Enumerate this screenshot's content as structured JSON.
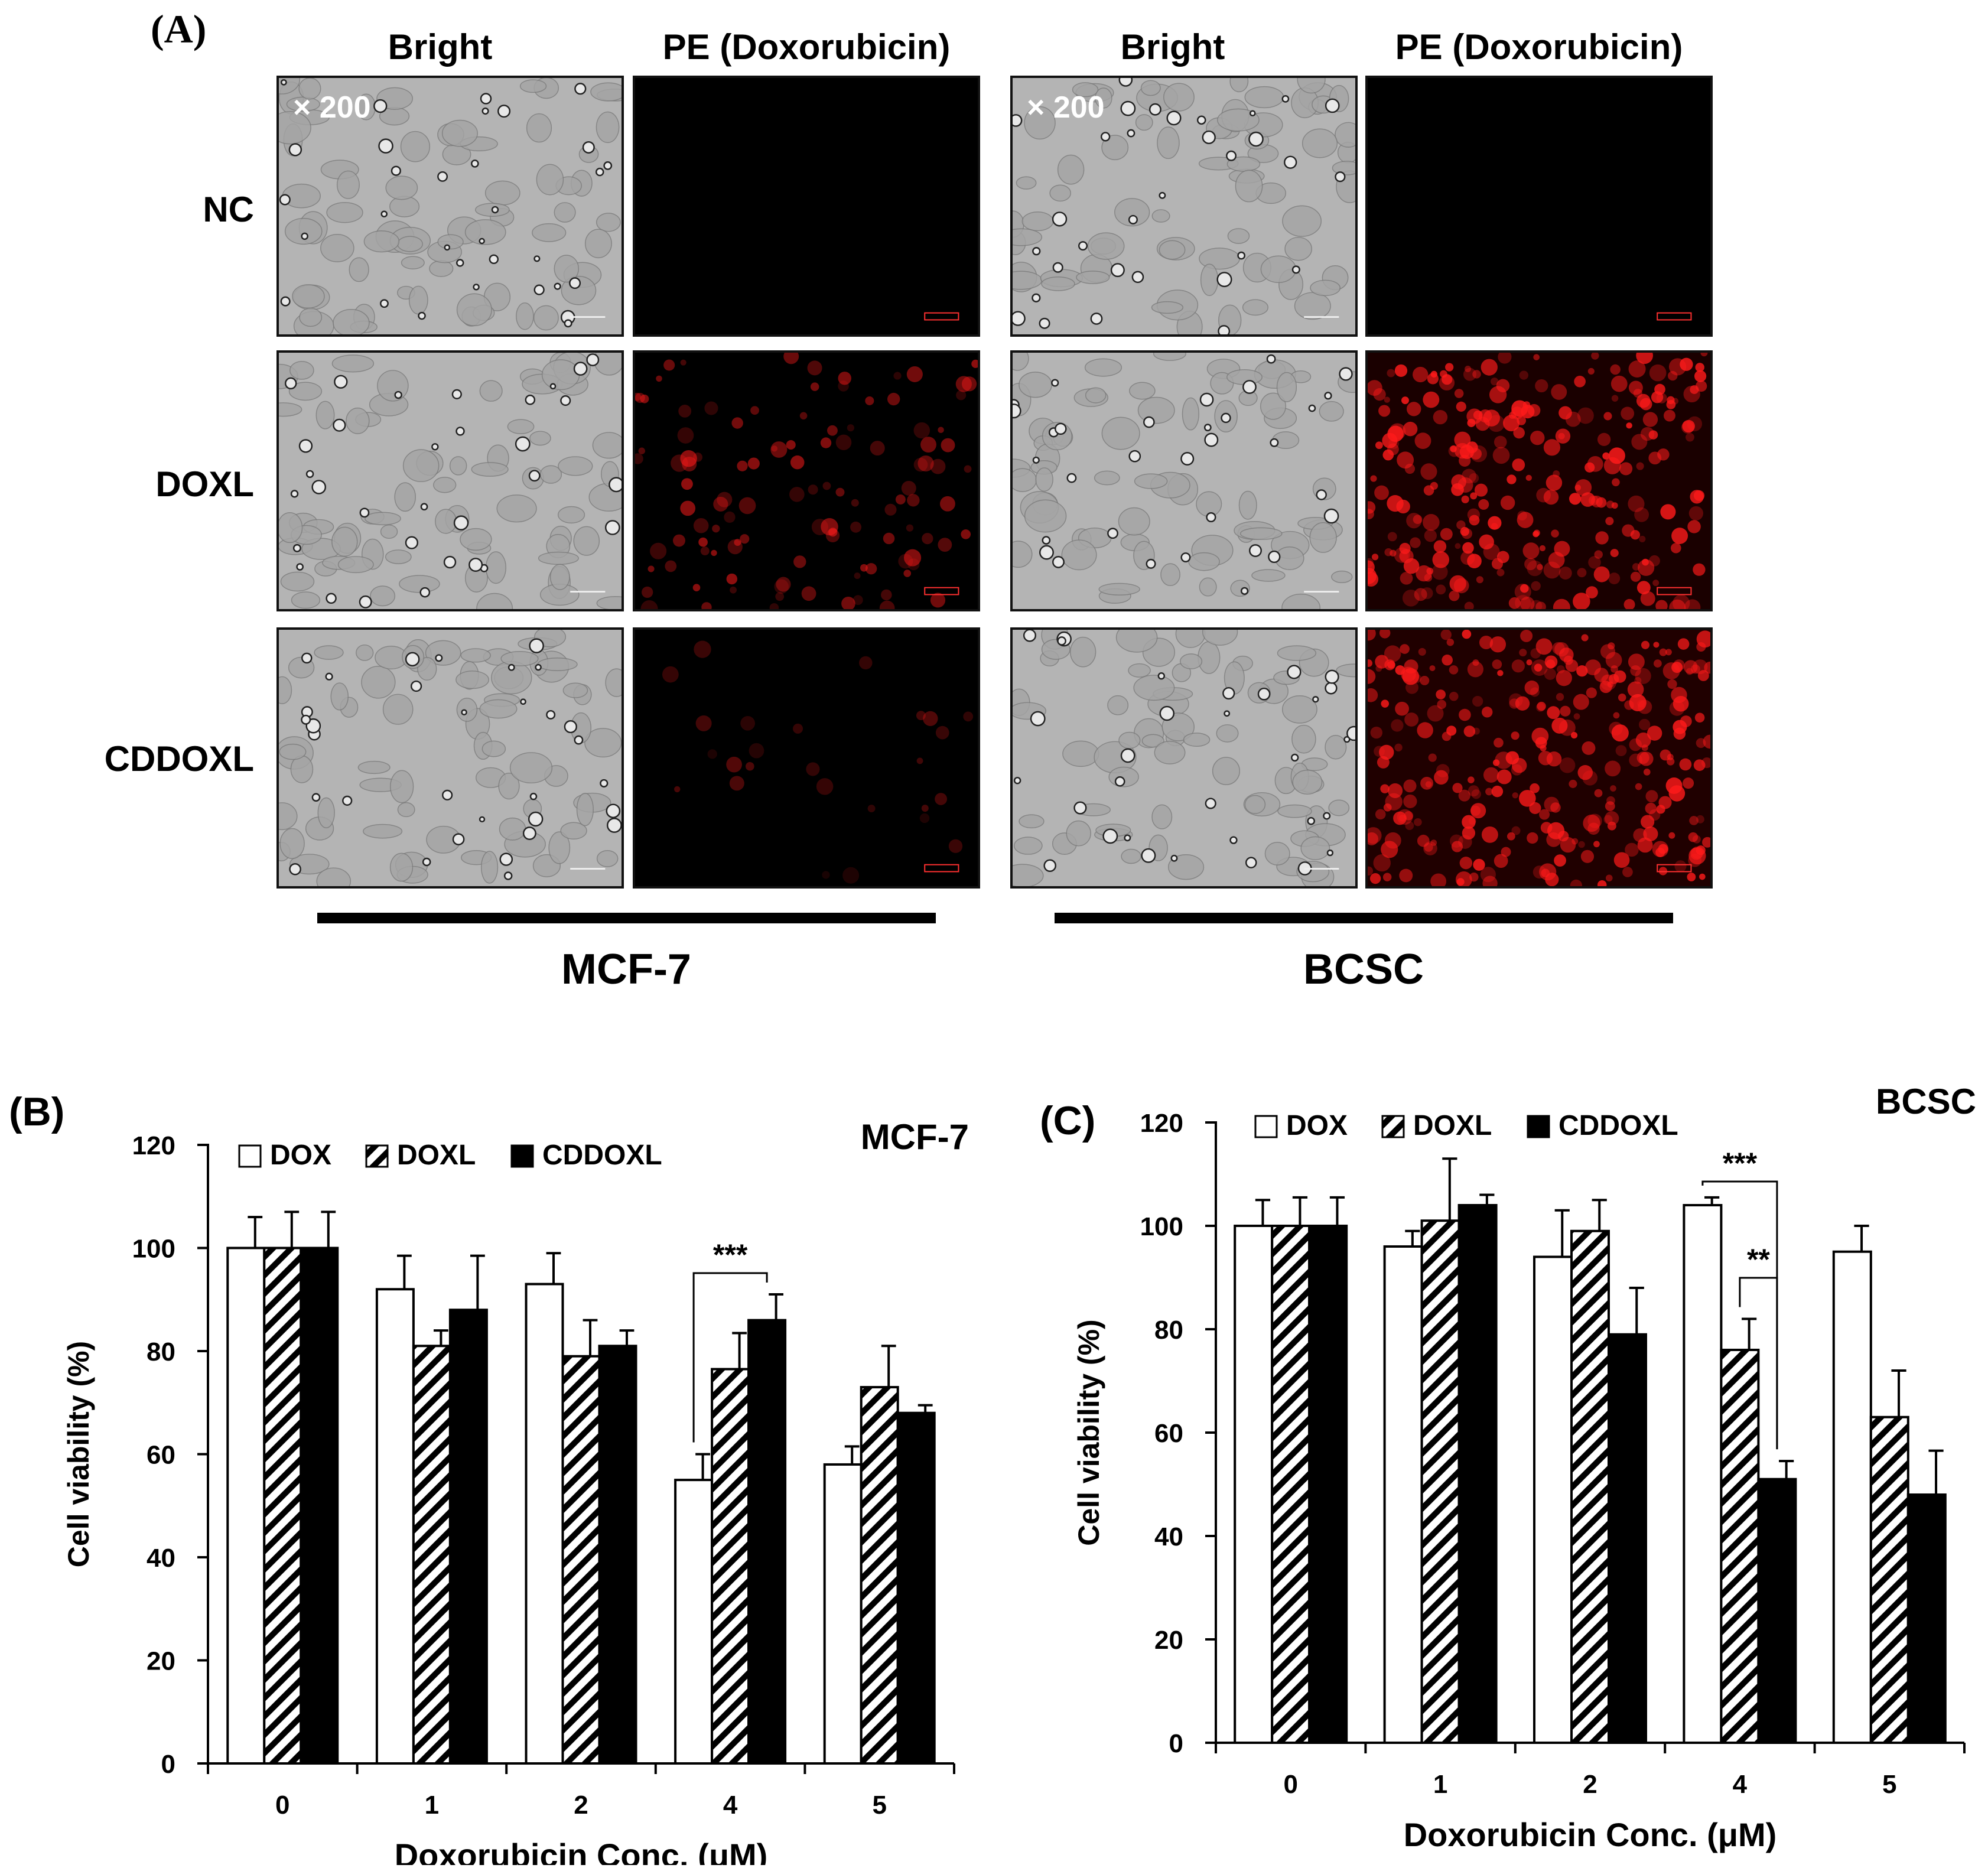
{
  "panel_a": {
    "label": "(A)",
    "magnification": "× 200",
    "columns": [
      "Bright",
      "PE (Doxorubicin)",
      "Bright",
      "PE (Doxorubicin)"
    ],
    "rows": [
      "NC",
      "DOXL",
      "CDDOXL"
    ],
    "groups": [
      "MCF-7",
      "BCSC"
    ],
    "fluorescence_intensity": {
      "MCF-7": {
        "NC": 0.0,
        "DOXL": 0.35,
        "CDDOXL": 0.08
      },
      "BCSC": {
        "NC": 0.0,
        "DOXL": 0.85,
        "CDDOXL": 0.95
      }
    },
    "colors": {
      "fluorescence": "#ff1a1a",
      "bright_field": "#b4b4b4"
    }
  },
  "chart_data": [
    {
      "type": "bar",
      "panel_label": "(B)",
      "title": "MCF-7",
      "xlabel": "Doxorubicin Conc. (μM)",
      "ylabel": "Cell viability (%)",
      "categories": [
        "0",
        "1",
        "2",
        "4",
        "5"
      ],
      "ylim": [
        0,
        120
      ],
      "yticks": [
        0,
        20,
        40,
        60,
        80,
        100,
        120
      ],
      "legend": "top",
      "series": [
        {
          "name": "DOX",
          "fill": "white",
          "values": [
            100,
            92,
            93,
            55,
            58
          ],
          "errors": [
            6,
            6.5,
            6,
            5,
            3.5
          ]
        },
        {
          "name": "DOXL",
          "fill": "hatch",
          "values": [
            100,
            81,
            79,
            76.5,
            73
          ],
          "errors": [
            7,
            3,
            7,
            7,
            8
          ]
        },
        {
          "name": "CDDOXL",
          "fill": "black",
          "values": [
            100,
            88,
            81,
            86,
            68
          ],
          "errors": [
            7,
            10.5,
            3,
            5,
            1.5
          ]
        }
      ],
      "significance": [
        {
          "label": "***",
          "from_category": "4",
          "from_series": "DOX",
          "to_category": "4",
          "to_series": "CDDOXL"
        }
      ]
    },
    {
      "type": "bar",
      "panel_label": "(C)",
      "title": "BCSC",
      "xlabel": "Doxorubicin Conc. (μM)",
      "ylabel": "Cell viability (%)",
      "categories": [
        "0",
        "1",
        "2",
        "4",
        "5"
      ],
      "ylim": [
        0,
        120
      ],
      "yticks": [
        0,
        20,
        40,
        60,
        80,
        100,
        120
      ],
      "legend": "top",
      "series": [
        {
          "name": "DOX",
          "fill": "white",
          "values": [
            100,
            96,
            94,
            104,
            95
          ],
          "errors": [
            5,
            3,
            9,
            1.5,
            5
          ]
        },
        {
          "name": "DOXL",
          "fill": "hatch",
          "values": [
            100,
            101,
            99,
            76,
            63
          ],
          "errors": [
            5.5,
            12,
            6,
            6,
            9
          ]
        },
        {
          "name": "CDDOXL",
          "fill": "black",
          "values": [
            100,
            104,
            79,
            51,
            48
          ],
          "errors": [
            5.5,
            2,
            9,
            3.5,
            8.5
          ]
        }
      ],
      "significance": [
        {
          "label": "***",
          "from_category": "4",
          "from_series": "DOX",
          "to_category": "4",
          "to_series": "CDDOXL"
        },
        {
          "label": "**",
          "from_category": "4",
          "from_series": "DOXL",
          "to_category": "4",
          "to_series": "CDDOXL"
        }
      ]
    }
  ]
}
